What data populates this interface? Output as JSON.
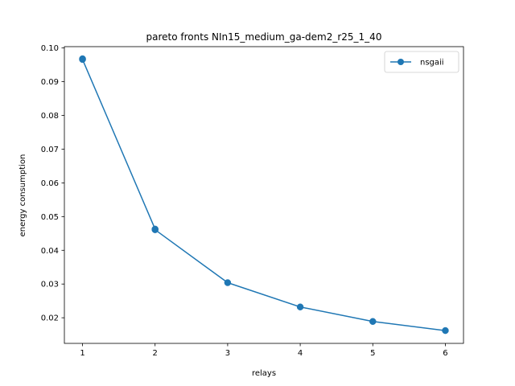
{
  "chart_data": {
    "type": "line",
    "title": "pareto fronts NIn15_medium_ga-dem2_r25_1_40",
    "xlabel": "relays",
    "ylabel": "energy consumption",
    "xlim": [
      0.75,
      6.25
    ],
    "ylim": [
      0.0124,
      0.1004
    ],
    "xticks": [
      1,
      2,
      3,
      4,
      5,
      6
    ],
    "yticks": [
      0.02,
      0.03,
      0.04,
      0.05,
      0.06,
      0.07,
      0.08,
      0.09,
      0.1
    ],
    "ytick_labels": [
      "0.02",
      "0.03",
      "0.04",
      "0.05",
      "0.06",
      "0.07",
      "0.08",
      "0.09",
      "0.10"
    ],
    "grid": false,
    "legend": "top-right",
    "series": [
      {
        "name": "nsgaii",
        "color": "#1f77b4",
        "marker": "circle",
        "x": [
          1,
          1,
          2,
          2,
          3,
          4,
          5,
          6
        ],
        "y": [
          0.0968,
          0.0966,
          0.0463,
          0.0461,
          0.0304,
          0.0232,
          0.0189,
          0.0162
        ]
      }
    ]
  }
}
